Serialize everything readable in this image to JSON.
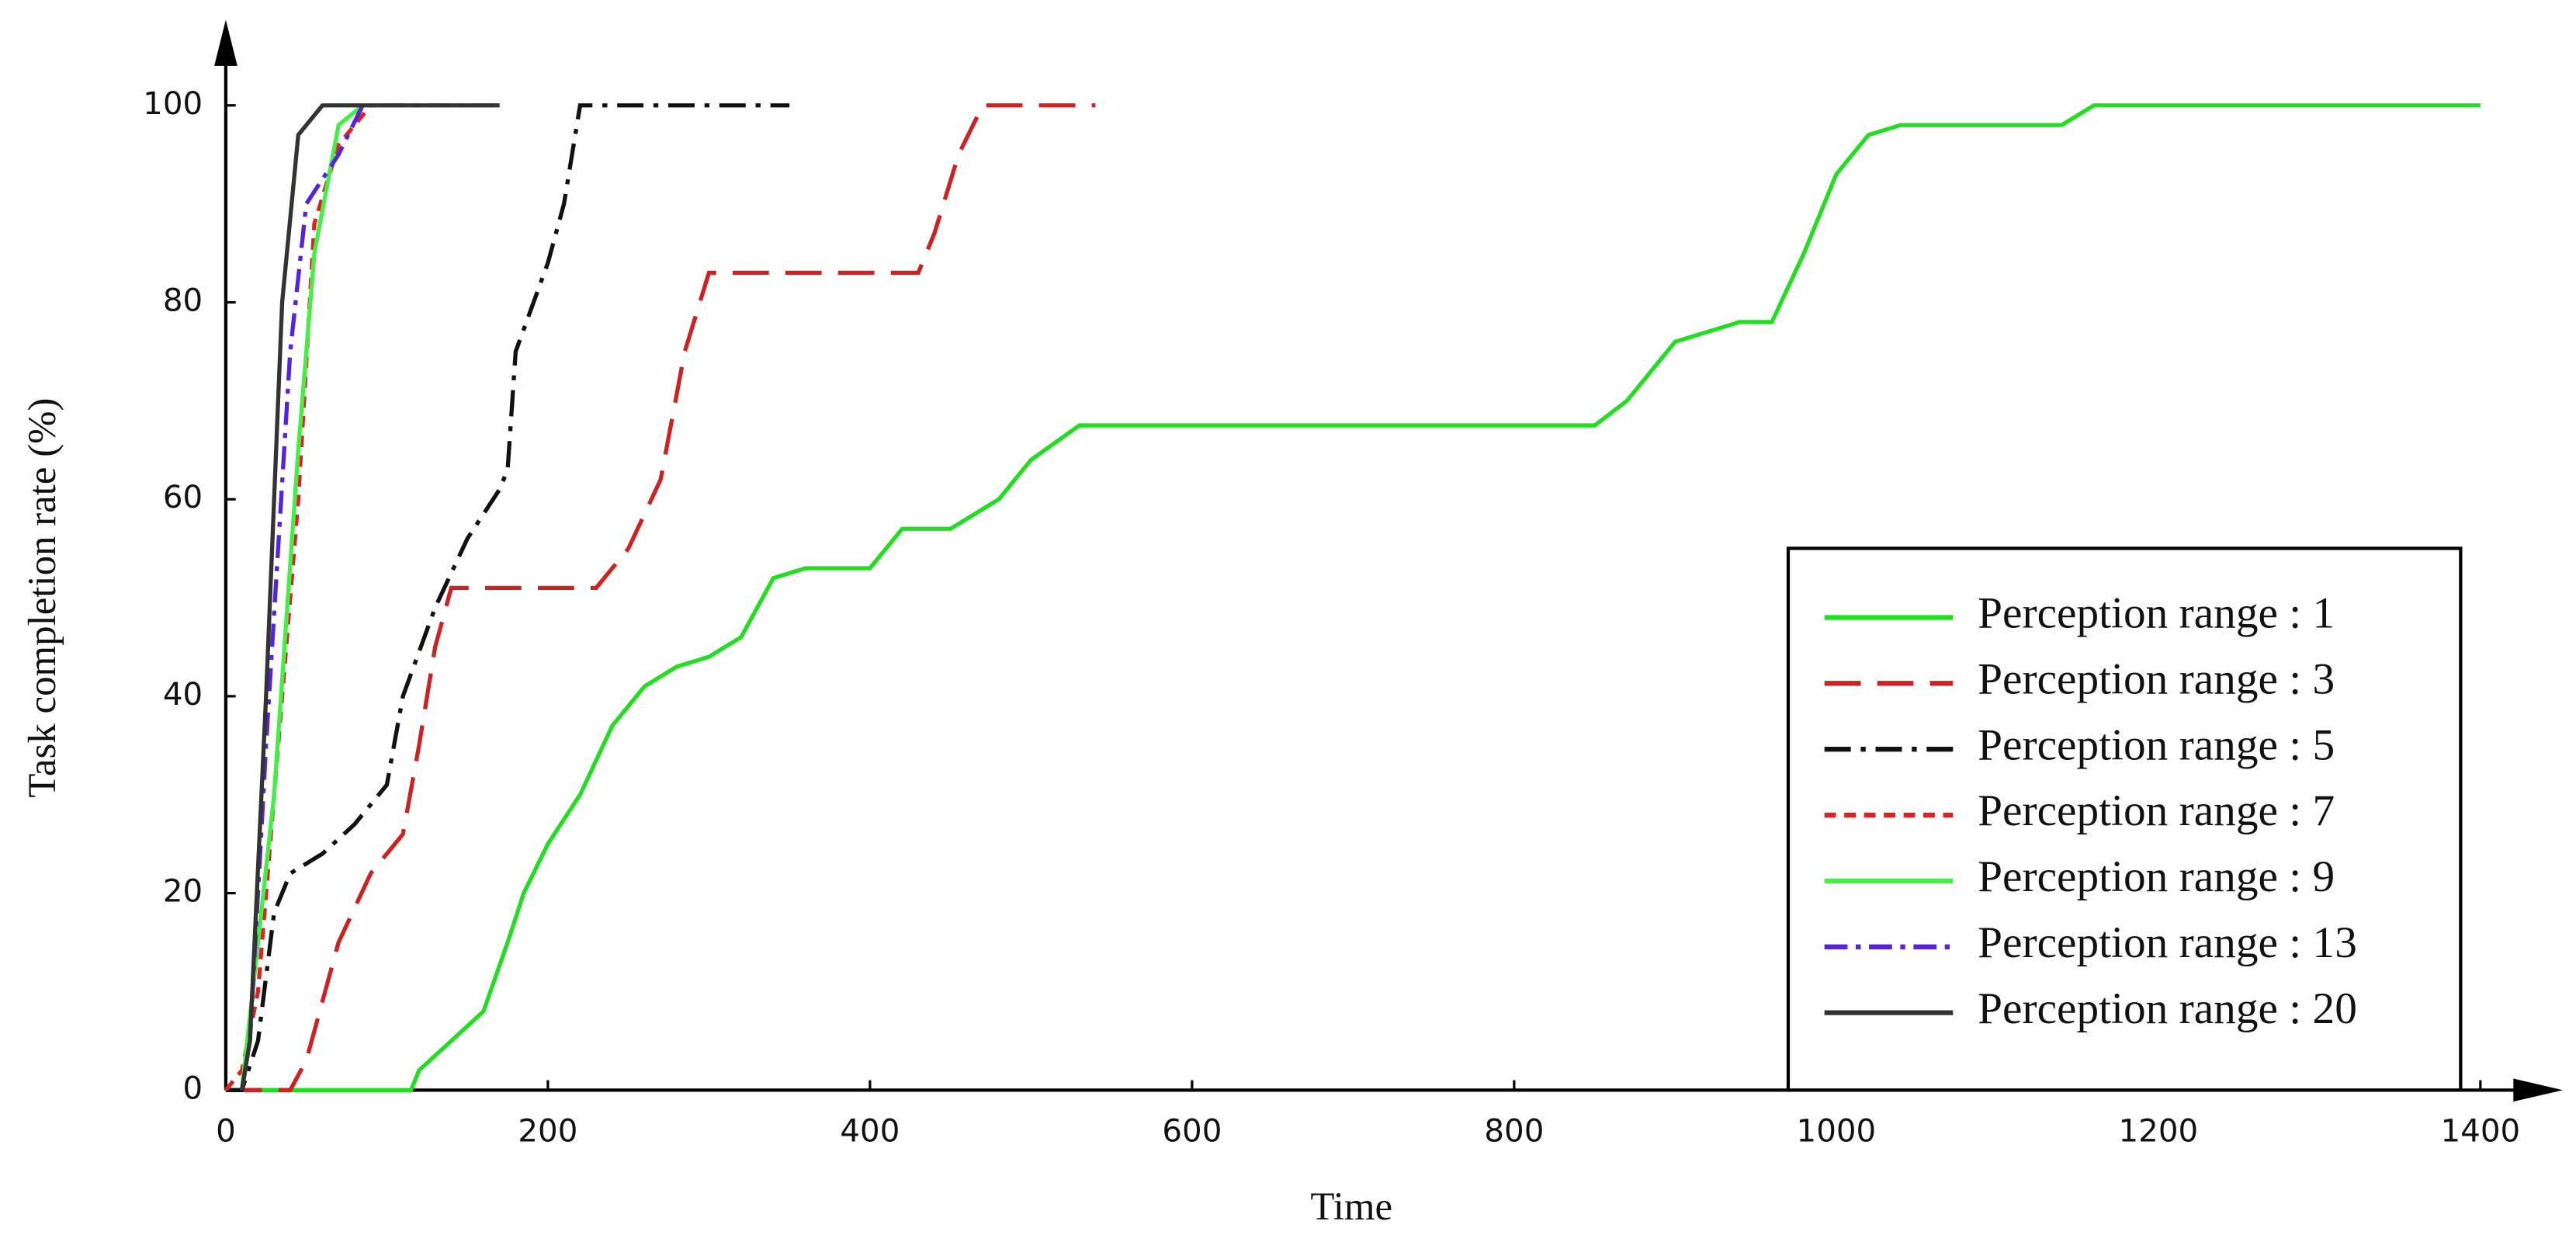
{
  "chart_data": {
    "type": "line",
    "xlabel": "Time",
    "ylabel": "Task completion rate (%)",
    "xlim": [
      0,
      1400
    ],
    "xticks": [
      0,
      200,
      400,
      600,
      800,
      1000,
      1200,
      1400
    ],
    "ylim": [
      0,
      100
    ],
    "yticks": [
      0,
      20,
      40,
      60,
      80,
      100
    ],
    "legend": "lower right",
    "series": [
      {
        "name": "Perception range : 1",
        "color": "#22dd22",
        "dash": "none",
        "x": [
          0,
          115,
          120,
          140,
          160,
          175,
          185,
          200,
          220,
          240,
          260,
          280,
          300,
          320,
          340,
          360,
          400,
          420,
          450,
          480,
          500,
          530,
          600,
          850,
          870,
          900,
          940,
          960,
          980,
          1000,
          1020,
          1040,
          1140,
          1160,
          1400
        ],
        "values": [
          0,
          0,
          2,
          5,
          8,
          15,
          20,
          25,
          30,
          37,
          41,
          43,
          44,
          46,
          52,
          53,
          53,
          57,
          57,
          60,
          64,
          67.5,
          67.5,
          67.5,
          70,
          76,
          78,
          78,
          85,
          93,
          97,
          98,
          98,
          100,
          100
        ]
      },
      {
        "name": "Perception range : 3",
        "color": "#cc2222",
        "dash": "22 10",
        "x": [
          0,
          40,
          50,
          70,
          90,
          110,
          120,
          130,
          140,
          230,
          250,
          270,
          285,
          300,
          430,
          440,
          455,
          470,
          540
        ],
        "values": [
          0,
          0,
          3,
          15,
          22,
          26,
          35,
          45,
          51,
          51,
          55,
          62,
          75,
          83,
          83,
          87,
          95,
          100,
          100
        ]
      },
      {
        "name": "Perception range : 5",
        "color": "#111111",
        "dash": "16 6 3 6",
        "x": [
          0,
          10,
          20,
          30,
          40,
          60,
          80,
          100,
          110,
          130,
          150,
          170,
          175,
          180,
          200,
          210,
          220,
          350
        ],
        "values": [
          0,
          0,
          5,
          18,
          22,
          24,
          27,
          31,
          40,
          49,
          56,
          61,
          63,
          75,
          84,
          90,
          100,
          100
        ]
      },
      {
        "name": "Perception range : 7",
        "color": "#dd2222",
        "dash": "7 5",
        "x": [
          0,
          10,
          20,
          30,
          45,
          55,
          70,
          90
        ],
        "values": [
          0,
          2,
          10,
          30,
          60,
          88,
          96,
          100
        ]
      },
      {
        "name": "Perception range : 9",
        "color": "#44ee44",
        "dash": "none",
        "x": [
          10,
          20,
          30,
          45,
          55,
          70,
          85
        ],
        "values": [
          0,
          15,
          30,
          65,
          85,
          98,
          100
        ]
      },
      {
        "name": "Perception range : 13",
        "color": "#5522dd",
        "dash": "14 5 3 5",
        "x": [
          10,
          15,
          25,
          40,
          50,
          70,
          85,
          170
        ],
        "values": [
          0,
          5,
          35,
          75,
          90,
          95,
          100,
          100
        ]
      },
      {
        "name": "Perception range : 20",
        "color": "#333333",
        "dash": "none",
        "x": [
          10,
          15,
          25,
          35,
          45,
          60,
          170
        ],
        "values": [
          0,
          5,
          40,
          80,
          97,
          100,
          100
        ]
      }
    ]
  }
}
